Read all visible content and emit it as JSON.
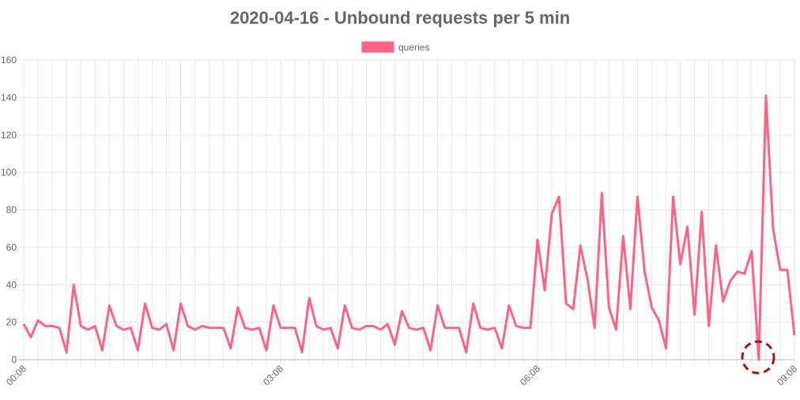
{
  "chart_data": {
    "type": "line",
    "title": "2020-04-16 - Unbound requests per 5 min",
    "categories": [
      "00:08",
      null,
      null,
      null,
      null,
      null,
      null,
      null,
      null,
      null,
      null,
      null,
      null,
      null,
      null,
      null,
      null,
      null,
      null,
      null,
      null,
      null,
      null,
      null,
      null,
      null,
      null,
      null,
      null,
      null,
      null,
      null,
      null,
      null,
      null,
      null,
      "03:08",
      null,
      null,
      null,
      null,
      null,
      null,
      null,
      null,
      null,
      null,
      null,
      null,
      null,
      null,
      null,
      null,
      null,
      null,
      null,
      null,
      null,
      null,
      null,
      null,
      null,
      null,
      null,
      null,
      null,
      null,
      null,
      null,
      null,
      null,
      null,
      "06:08",
      null,
      null,
      null,
      null,
      null,
      null,
      null,
      null,
      null,
      null,
      null,
      null,
      null,
      null,
      null,
      null,
      null,
      null,
      null,
      null,
      null,
      null,
      null,
      null,
      null,
      null,
      null,
      null,
      null,
      null,
      null,
      null,
      null,
      null,
      null,
      "09:08"
    ],
    "series": [
      {
        "name": "queries",
        "color": "#ff6384",
        "values": [
          19,
          12,
          21,
          18,
          18,
          17,
          4,
          40,
          18,
          16,
          18,
          5,
          29,
          18,
          16,
          17,
          5,
          30,
          17,
          16,
          19,
          5,
          30,
          18,
          16,
          18,
          17,
          17,
          17,
          6,
          28,
          17,
          16,
          17,
          5,
          29,
          17,
          17,
          17,
          4,
          33,
          18,
          16,
          17,
          6,
          29,
          17,
          16,
          18,
          18,
          16,
          19,
          8,
          26,
          17,
          16,
          17,
          5,
          29,
          17,
          17,
          17,
          4,
          30,
          17,
          16,
          17,
          6,
          29,
          18,
          17,
          17,
          64,
          37,
          78,
          87,
          30,
          27,
          61,
          43,
          17,
          89,
          28,
          16,
          66,
          27,
          87,
          47,
          28,
          21,
          6,
          87,
          51,
          71,
          24,
          79,
          18,
          61,
          31,
          42,
          47,
          46,
          58,
          0,
          141,
          70,
          48,
          48,
          13
        ]
      }
    ],
    "ylim": [
      0,
      160
    ],
    "yticks": [
      0,
      20,
      40,
      60,
      80,
      100,
      120,
      140,
      160
    ],
    "grid": true,
    "legend": "top"
  }
}
